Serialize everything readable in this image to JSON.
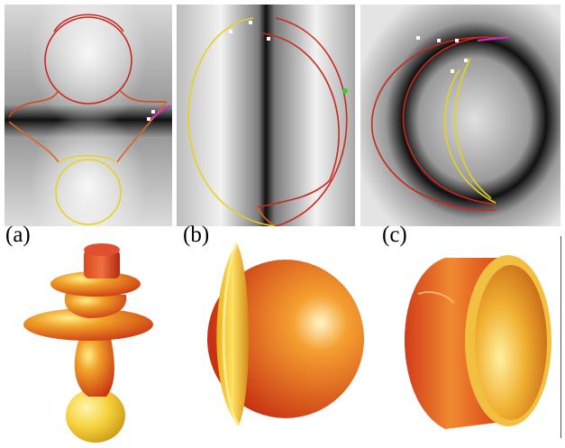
{
  "figure": {
    "panel_labels": [
      "(a)",
      "(b)",
      "(c)"
    ]
  },
  "colors": {
    "curve_red": "#c8281e",
    "curve_orange": "#e0641e",
    "curve_yellow": "#e6d21e",
    "marker_magenta": "#c832c8",
    "marker_green": "#32d232",
    "shape_highlight": "#ffef8a",
    "shape_mid": "#f0a028",
    "shape_dark": "#c83214"
  }
}
